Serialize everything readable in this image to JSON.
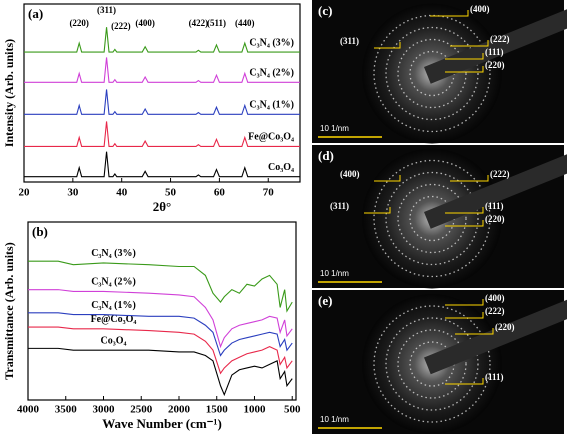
{
  "chart_data": [
    {
      "type": "line",
      "panel_label": "(a)",
      "x_label": "2θ°",
      "y_label": "Intensity (Arb. units)",
      "x": [
        20,
        30,
        30.8,
        31.3,
        31.8,
        36,
        36.4,
        36.9,
        37.4,
        38.2,
        38.6,
        39,
        44.2,
        44.8,
        45.4,
        55.2,
        55.7,
        56.2,
        58.8,
        59.4,
        60,
        64.6,
        65.2,
        65.8,
        76.5
      ],
      "series": [
        {
          "name": "Co₃O₄",
          "color": "#000000",
          "values": [
            3,
            3,
            3,
            8,
            3,
            3,
            3,
            17,
            3,
            3,
            4.5,
            3,
            3,
            6,
            3,
            3,
            4,
            3,
            3,
            7,
            3,
            3,
            8,
            3,
            3
          ]
        },
        {
          "name": "Fe@Co₃O₄",
          "color": "#e8284a",
          "values": [
            20,
            20,
            20,
            25,
            20,
            20,
            20,
            34,
            20,
            20,
            21.5,
            20,
            20,
            23,
            20,
            20,
            21,
            20,
            20,
            24,
            20,
            20,
            25,
            20,
            20
          ]
        },
        {
          "name": "C₃N₄ (1%)",
          "color": "#2b3fbf",
          "values": [
            38,
            38,
            38,
            43,
            38,
            38,
            38,
            52,
            38,
            38,
            39.5,
            38,
            38,
            41,
            38,
            38,
            39,
            38,
            38,
            42,
            38,
            38,
            43,
            38,
            38
          ]
        },
        {
          "name": "C₃N₄ (2%)",
          "color": "#d040d8",
          "values": [
            56,
            56,
            56,
            61,
            56,
            56,
            56,
            70,
            56,
            56,
            57.5,
            56,
            56,
            59,
            56,
            56,
            57,
            56,
            56,
            60,
            56,
            56,
            61,
            56,
            56
          ]
        },
        {
          "name": "C₃N₄ (3%)",
          "color": "#3a9a1a",
          "values": [
            73,
            73,
            73,
            78,
            73,
            73,
            73,
            87,
            73,
            73,
            74.5,
            73,
            73,
            76,
            73,
            73,
            74,
            73,
            73,
            77,
            73,
            73,
            78,
            73,
            73
          ]
        }
      ],
      "peak_labels": [
        {
          "label": "(220)",
          "x": 31.3
        },
        {
          "label": "(311)",
          "x": 36.9
        },
        {
          "label": "(222)",
          "x": 38.6
        },
        {
          "label": "(400)",
          "x": 44.8
        },
        {
          "label": "(422)",
          "x": 55.7
        },
        {
          "label": "(511)",
          "x": 59.4
        },
        {
          "label": "(440)",
          "x": 65.2
        }
      ],
      "xlim": [
        20,
        76.5
      ],
      "ylim": [
        0,
        100
      ],
      "xticks": [
        20,
        30,
        40,
        50,
        60,
        70
      ]
    },
    {
      "type": "line",
      "panel_label": "(b)",
      "x_label": "Wave Number (cm⁻¹)",
      "y_label": "Transmittance (Arb. units)",
      "x": [
        4000,
        3600,
        3400,
        3000,
        2400,
        2000,
        1800,
        1650,
        1550,
        1450,
        1400,
        1300,
        1200,
        1100,
        1000,
        900,
        800,
        700,
        660,
        600,
        570,
        500
      ],
      "series": [
        {
          "name": "Co₃O₄",
          "color": "#000000",
          "values": [
            29,
            29,
            28,
            28,
            28,
            27,
            27,
            25,
            22,
            8,
            3,
            14,
            17,
            18,
            19,
            18,
            20,
            22,
            12,
            16,
            8,
            12
          ]
        },
        {
          "name": "Fe@Co₃O₄",
          "color": "#e8284a",
          "values": [
            41,
            41,
            40,
            40,
            39,
            38,
            37,
            33,
            28,
            15,
            18,
            22,
            24,
            26,
            27,
            28,
            30,
            28,
            20,
            24,
            18,
            22
          ]
        },
        {
          "name": "C₃N₄ (1%)",
          "color": "#2b3fbf",
          "values": [
            49,
            49,
            48,
            48,
            47,
            47,
            46,
            42,
            38,
            25,
            28,
            32,
            34,
            35,
            36,
            37,
            38,
            37,
            30,
            34,
            28,
            32
          ]
        },
        {
          "name": "C₃N₄ (2%)",
          "color": "#d040d8",
          "values": [
            62,
            62,
            61,
            61,
            60,
            59,
            58,
            52,
            45,
            30,
            35,
            40,
            42,
            43,
            44,
            45,
            47,
            46,
            38,
            45,
            36,
            40
          ]
        },
        {
          "name": "C₃N₄ (3%)",
          "color": "#3a9a1a",
          "values": [
            78,
            78,
            76,
            77,
            76,
            75,
            75,
            70,
            60,
            55,
            58,
            62,
            60,
            65,
            64,
            68,
            70,
            65,
            52,
            62,
            50,
            55
          ]
        }
      ],
      "xlim": [
        4000,
        450
      ],
      "ylim": [
        0,
        100
      ],
      "xticks": [
        4000,
        3500,
        3000,
        2500,
        2000,
        1500,
        1000,
        500
      ]
    }
  ],
  "saed_panels": [
    {
      "label": "(c)",
      "planes": [
        "(400)",
        "(311)",
        "(222)",
        "(111)",
        "(220)"
      ],
      "scale_bar": "10 1/nm"
    },
    {
      "label": "(d)",
      "planes": [
        "(400)",
        "(222)",
        "(311)",
        "(111)",
        "(220)"
      ],
      "scale_bar": "10 1/nm"
    },
    {
      "label": "(e)",
      "planes": [
        "(400)",
        "(222)",
        "(220)",
        "(111)"
      ],
      "scale_bar": "10 1/nm"
    }
  ]
}
